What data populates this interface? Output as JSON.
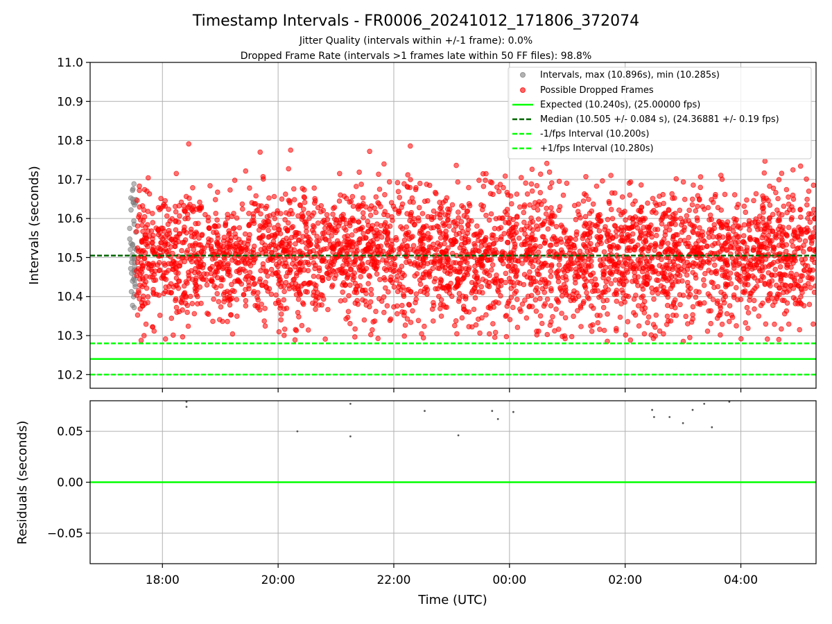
{
  "chart_data": [
    {
      "type": "scatter",
      "title": "Timestamp Intervals - FR0006_20241012_171806_372074",
      "subtitle_lines": [
        "Jitter Quality (intervals within +/-1 frame): 0.0%",
        "Dropped Frame Rate (intervals >1 frames late within 50 FF files): 98.8%"
      ],
      "xlabel": "",
      "ylabel": "Intervals (seconds)",
      "ylim": [
        10.165,
        11.0
      ],
      "yticks": [
        "10.2",
        "10.3",
        "10.4",
        "10.5",
        "10.6",
        "10.7",
        "10.8",
        "10.9",
        "11.0"
      ],
      "grid": true,
      "legend_position": "top-right",
      "colors": {
        "intervals": "#808080",
        "dropped": "#ff0000",
        "expected": "#00ff00",
        "median": "#006400",
        "fps_interval": "#00ff00"
      },
      "series": [
        {
          "name": "Intervals, max (10.896s), min (10.285s)",
          "kind": "points",
          "time_range": [
            "17:26",
            "17:33"
          ],
          "y_range": [
            10.37,
            10.69
          ],
          "count": 45
        },
        {
          "name": "Possible Dropped Frames",
          "kind": "points",
          "time_range": [
            "17:33",
            "05:18"
          ],
          "y_center": 10.505,
          "y_spread": 0.084,
          "y_range": [
            10.285,
            10.896
          ],
          "count": 3600
        },
        {
          "name": "Expected (10.240s), (25.00000 fps)",
          "kind": "hline",
          "y": 10.24,
          "style": "solid"
        },
        {
          "name": "Median (10.505 +/- 0.084 s), (24.36881 +/- 0.19 fps)",
          "kind": "hline",
          "y": 10.505,
          "style": "dashed"
        },
        {
          "name": "-1/fps Interval (10.200s)",
          "kind": "hline",
          "y": 10.2,
          "style": "dashed"
        },
        {
          "name": "+1/fps Interval (10.280s)",
          "kind": "hline",
          "y": 10.28,
          "style": "dashed"
        }
      ]
    },
    {
      "type": "scatter",
      "xlabel": "Time (UTC)",
      "ylabel": "Residuals (seconds)",
      "ylim": [
        -0.08,
        0.08
      ],
      "yticks": [
        "−0.05",
        "0.00",
        "0.05"
      ],
      "xlim": [
        "16:45",
        "05:18"
      ],
      "xticks": [
        "18:00",
        "20:00",
        "22:00",
        "00:00",
        "02:00",
        "04:00"
      ],
      "grid": true,
      "zero_line": 0.0,
      "series": [
        {
          "name": "",
          "kind": "points",
          "points": [
            {
              "x": "18:25",
              "y": 0.079
            },
            {
              "x": "18:25",
              "y": 0.074
            },
            {
              "x": "20:20",
              "y": 0.05
            },
            {
              "x": "21:15",
              "y": 0.077
            },
            {
              "x": "21:15",
              "y": 0.045
            },
            {
              "x": "22:32",
              "y": 0.07
            },
            {
              "x": "23:07",
              "y": 0.046
            },
            {
              "x": "23:42",
              "y": 0.07
            },
            {
              "x": "23:48",
              "y": 0.062
            },
            {
              "x": "00:04",
              "y": 0.069
            },
            {
              "x": "02:28",
              "y": 0.071
            },
            {
              "x": "02:30",
              "y": 0.064
            },
            {
              "x": "02:46",
              "y": 0.064
            },
            {
              "x": "03:00",
              "y": 0.058
            },
            {
              "x": "03:10",
              "y": 0.071
            },
            {
              "x": "03:22",
              "y": 0.077
            },
            {
              "x": "03:30",
              "y": 0.054
            },
            {
              "x": "03:48",
              "y": 0.079
            }
          ]
        }
      ]
    }
  ]
}
